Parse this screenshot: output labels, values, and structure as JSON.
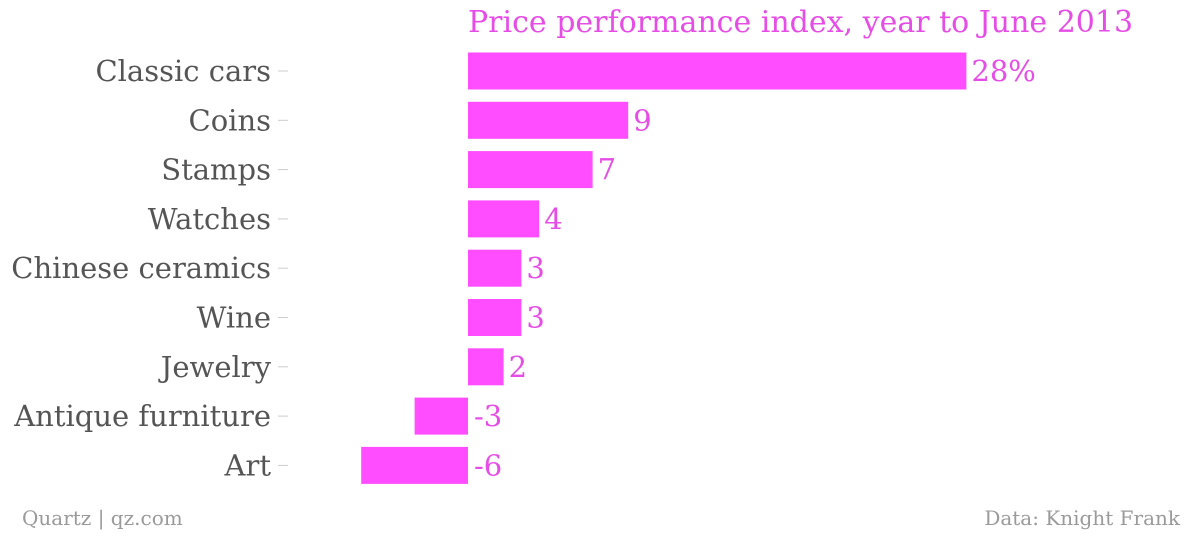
{
  "chart_data": {
    "type": "bar",
    "orientation": "horizontal",
    "title": "Price performance index, year to June 2013",
    "categories": [
      "Classic cars",
      "Coins",
      "Stamps",
      "Watches",
      "Chinese ceramics",
      "Wine",
      "Jewelry",
      "Antique furniture",
      "Art"
    ],
    "values": [
      28,
      9,
      7,
      4,
      3,
      3,
      2,
      -3,
      -6
    ],
    "value_labels": [
      "28%",
      "9",
      "7",
      "4",
      "3",
      "3",
      "2",
      "-3",
      "-6"
    ],
    "xlim": [
      -6,
      28
    ],
    "grid": false,
    "bar_color": "#ff4dff",
    "label_color": "#e64ce6",
    "category_label_color": "#555555"
  },
  "footer": {
    "source_left": "Quartz | qz.com",
    "source_right": "Data: Knight Frank"
  }
}
